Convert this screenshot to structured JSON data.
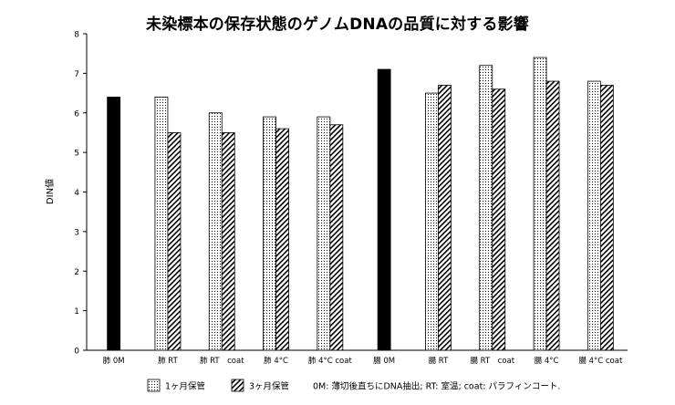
{
  "chart_data": {
    "type": "bar",
    "title": "未染標本の保存状態のゲノムDNAの品質に対する影響",
    "ylabel": "DIN値",
    "xlabel": "",
    "ylim": [
      0,
      8
    ],
    "yticks": [
      0,
      1,
      2,
      3,
      4,
      5,
      6,
      7,
      8
    ],
    "grid": false,
    "legend_position": "bottom",
    "groups": [
      {
        "category": "肺 0M",
        "values": {
          "0M": 6.4
        }
      },
      {
        "category": "肺 RT",
        "values": {
          "1ヶ月保管": 6.4,
          "3ヶ月保管": 5.5
        }
      },
      {
        "category": "肺 RT　coat",
        "values": {
          "1ヶ月保管": 6.0,
          "3ヶ月保管": 5.5
        }
      },
      {
        "category": "肺 4°C",
        "values": {
          "1ヶ月保管": 5.9,
          "3ヶ月保管": 5.6
        }
      },
      {
        "category": "肺 4°C coat",
        "values": {
          "1ヶ月保管": 5.9,
          "3ヶ月保管": 5.7
        }
      },
      {
        "category": "腸 0M",
        "values": {
          "0M": 7.1
        }
      },
      {
        "category": "腸 RT",
        "values": {
          "1ヶ月保管": 6.5,
          "3ヶ月保管": 6.7
        }
      },
      {
        "category": "腸 RT　coat",
        "values": {
          "1ヶ月保管": 7.2,
          "3ヶ月保管": 6.6
        }
      },
      {
        "category": "腸 4°C",
        "values": {
          "1ヶ月保管": 7.4,
          "3ヶ月保管": 6.8
        }
      },
      {
        "category": "腸 4°C coat",
        "values": {
          "1ヶ月保管": 6.8,
          "3ヶ月保管": 6.7
        }
      }
    ],
    "legend": {
      "items": [
        {
          "name": "1ヶ月保管",
          "pattern": "dots"
        },
        {
          "name": "3ヶ月保管",
          "pattern": "diagonal-stripes"
        }
      ],
      "note": "0M: 薄切後直ちにDNA抽出; RT: 室温; coat: パラフィンコート."
    },
    "colors": {
      "solid": "#000000",
      "stroke": "#000000",
      "fill_bg": "#ffffff"
    }
  }
}
